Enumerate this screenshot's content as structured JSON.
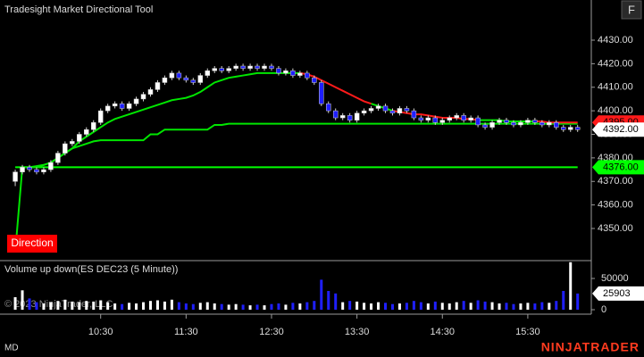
{
  "chart_data": {
    "type": "candlestick",
    "title": "Tradesight Market Directional Tool",
    "button": "F",
    "indicator_label": "Direction",
    "volume_title": "Volume up down(ES DEC23 (5 Minute))",
    "watermark": "© 2023 NinjaTrader, LLC",
    "footer_left": "MD",
    "brand": "NINJATRADER",
    "up_color": "#ffffff",
    "down_color": "#1f1fff",
    "x": [
      570,
      575,
      580,
      585,
      590,
      595,
      600,
      605,
      610,
      615,
      620,
      625,
      630,
      635,
      640,
      645,
      650,
      655,
      660,
      665,
      670,
      675,
      680,
      685,
      690,
      695,
      700,
      705,
      710,
      715,
      720,
      725,
      730,
      735,
      740,
      745,
      750,
      755,
      760,
      765,
      770,
      775,
      780,
      785,
      790,
      795,
      800,
      805,
      810,
      815,
      820,
      825,
      830,
      835,
      840,
      845,
      850,
      855,
      860,
      865,
      870,
      875,
      880,
      885,
      890,
      895,
      900,
      905,
      910,
      915,
      920,
      925,
      930,
      935,
      940,
      945,
      950,
      955,
      960,
      965
    ],
    "ohlc": [
      [
        4370,
        4375,
        4368,
        4374
      ],
      [
        4374,
        4377,
        4373,
        4376
      ],
      [
        4376,
        4377,
        4374,
        4375
      ],
      [
        4375,
        4376,
        4373,
        4374
      ],
      [
        4374,
        4376,
        4373,
        4375
      ],
      [
        4375,
        4379,
        4374,
        4378
      ],
      [
        4378,
        4383,
        4377,
        4382
      ],
      [
        4382,
        4387,
        4381,
        4386
      ],
      [
        4386,
        4388,
        4385,
        4387
      ],
      [
        4387,
        4391,
        4386,
        4390
      ],
      [
        4390,
        4393,
        4389,
        4392
      ],
      [
        4392,
        4396,
        4391,
        4395
      ],
      [
        4395,
        4401,
        4394,
        4400
      ],
      [
        4400,
        4403,
        4399,
        4402
      ],
      [
        4402,
        4404,
        4401,
        4403
      ],
      [
        4403,
        4404,
        4400,
        4401
      ],
      [
        4401,
        4404,
        4400,
        4403
      ],
      [
        4403,
        4406,
        4402,
        4405
      ],
      [
        4405,
        4408,
        4404,
        4407
      ],
      [
        4407,
        4410,
        4406,
        4409
      ],
      [
        4409,
        4413,
        4408,
        4412
      ],
      [
        4412,
        4415,
        4411,
        4414
      ],
      [
        4414,
        4417,
        4413,
        4416
      ],
      [
        4416,
        4417,
        4413,
        4414
      ],
      [
        4414,
        4415,
        4412,
        4413
      ],
      [
        4413,
        4414,
        4411,
        4412
      ],
      [
        4412,
        4416,
        4411,
        4415
      ],
      [
        4415,
        4418,
        4414,
        4417
      ],
      [
        4417,
        4419,
        4416,
        4418
      ],
      [
        4418,
        4419,
        4416,
        4417
      ],
      [
        4417,
        4419,
        4416,
        4418
      ],
      [
        4418,
        4420,
        4417,
        4419
      ],
      [
        4419,
        4420,
        4417,
        4418
      ],
      [
        4418,
        4420,
        4417,
        4419
      ],
      [
        4419,
        4420,
        4417,
        4418
      ],
      [
        4418,
        4420,
        4417,
        4419
      ],
      [
        4419,
        4420,
        4417,
        4418
      ],
      [
        4418,
        4419,
        4415,
        4416
      ],
      [
        4416,
        4418,
        4415,
        4417
      ],
      [
        4417,
        4418,
        4414,
        4415
      ],
      [
        4415,
        4417,
        4414,
        4416
      ],
      [
        4416,
        4417,
        4413,
        4414
      ],
      [
        4414,
        4415,
        4411,
        4412
      ],
      [
        4412,
        4413,
        4402,
        4403
      ],
      [
        4403,
        4404,
        4399,
        4400
      ],
      [
        4400,
        4401,
        4396,
        4397
      ],
      [
        4397,
        4399,
        4396,
        4398
      ],
      [
        4398,
        4399,
        4395,
        4396
      ],
      [
        4396,
        4400,
        4395,
        4399
      ],
      [
        4399,
        4401,
        4398,
        4400
      ],
      [
        4400,
        4402,
        4399,
        4401
      ],
      [
        4401,
        4403,
        4400,
        4402
      ],
      [
        4402,
        4403,
        4399,
        4400
      ],
      [
        4400,
        4401,
        4398,
        4399
      ],
      [
        4399,
        4402,
        4398,
        4401
      ],
      [
        4401,
        4402,
        4399,
        4400
      ],
      [
        4400,
        4401,
        4396,
        4397
      ],
      [
        4397,
        4398,
        4395,
        4396
      ],
      [
        4396,
        4398,
        4395,
        4397
      ],
      [
        4397,
        4398,
        4394,
        4395
      ],
      [
        4395,
        4397,
        4394,
        4396
      ],
      [
        4396,
        4398,
        4395,
        4397
      ],
      [
        4397,
        4399,
        4396,
        4398
      ],
      [
        4398,
        4399,
        4395,
        4396
      ],
      [
        4396,
        4398,
        4395,
        4397
      ],
      [
        4397,
        4398,
        4393,
        4394
      ],
      [
        4394,
        4395,
        4392,
        4393
      ],
      [
        4393,
        4396,
        4392,
        4395
      ],
      [
        4395,
        4397,
        4394,
        4396
      ],
      [
        4396,
        4397,
        4394,
        4395
      ],
      [
        4395,
        4396,
        4393,
        4394
      ],
      [
        4394,
        4396,
        4393,
        4395
      ],
      [
        4395,
        4397,
        4394,
        4396
      ],
      [
        4396,
        4397,
        4394,
        4395
      ],
      [
        4395,
        4396,
        4393,
        4394
      ],
      [
        4394,
        4396,
        4393,
        4395
      ],
      [
        4395,
        4396,
        4392,
        4393
      ],
      [
        4393,
        4394,
        4391,
        4392
      ],
      [
        4392,
        4394,
        4391,
        4393
      ],
      [
        4393,
        4394,
        4391,
        4392
      ]
    ],
    "volume": [
      20000,
      31000,
      18000,
      12000,
      10000,
      12000,
      14000,
      16000,
      13000,
      12000,
      14000,
      13000,
      15000,
      12000,
      10000,
      9000,
      11000,
      10000,
      12000,
      14000,
      15000,
      13000,
      16000,
      12000,
      10000,
      9000,
      11000,
      12000,
      10000,
      9000,
      8000,
      9000,
      8000,
      7000,
      8000,
      7000,
      9000,
      10000,
      8000,
      11000,
      10000,
      12000,
      14000,
      48000,
      30000,
      26000,
      12000,
      14000,
      13000,
      11000,
      10000,
      12000,
      11000,
      9000,
      10000,
      11000,
      14000,
      12000,
      10000,
      13000,
      11000,
      10000,
      12000,
      14000,
      11000,
      15000,
      13000,
      12000,
      10000,
      11000,
      9000,
      10000,
      11000,
      10000,
      12000,
      11000,
      14000,
      30000,
      76000,
      25903
    ],
    "series": [
      {
        "color": "#00e600",
        "values": [
          4340,
          4376,
          4376,
          4376,
          4377,
          4378,
          4380,
          4382,
          4384,
          4387,
          4389,
          4391,
          4393,
          4395,
          4396.5,
          4397.5,
          4398.5,
          4399.5,
          4400.5,
          4401.5,
          4402.5,
          4403.5,
          4404.5,
          4405,
          4405.5,
          4406.5,
          4408,
          4410,
          4412,
          4413,
          4414,
          4414.5,
          4415,
          4415.5,
          4416,
          4416,
          4416,
          4416,
          4416,
          4416,
          4416,
          null,
          null,
          null,
          null,
          null,
          null,
          null,
          null,
          null,
          4403,
          4402,
          4401,
          4400,
          null,
          null,
          null,
          null,
          null,
          null,
          null,
          null,
          null,
          null,
          null,
          4396,
          4396,
          4396,
          4396,
          4395.5,
          4395.5,
          4395.5,
          4395.5,
          4395.5,
          null,
          null,
          null,
          null,
          null,
          null
        ]
      },
      {
        "color": "#ff1a1a",
        "values": [
          null,
          null,
          null,
          null,
          null,
          null,
          null,
          null,
          null,
          null,
          null,
          null,
          null,
          null,
          null,
          null,
          null,
          null,
          null,
          null,
          null,
          null,
          null,
          null,
          null,
          null,
          null,
          null,
          null,
          null,
          null,
          null,
          null,
          null,
          null,
          null,
          null,
          null,
          null,
          null,
          4416,
          4415.5,
          4414.5,
          4413,
          4411.5,
          4410,
          4408.5,
          4407,
          4405.5,
          4404,
          4403,
          null,
          null,
          4400,
          4399.5,
          4399,
          4398.5,
          4398.5,
          4398,
          4397.5,
          4397,
          4397,
          4397,
          4396.5,
          4396.5,
          4396,
          null,
          null,
          null,
          null,
          null,
          null,
          null,
          4395.5,
          4395.5,
          4395,
          4395,
          4395,
          4395,
          4395
        ]
      }
    ],
    "step_line": {
      "color": "#00e600",
      "values": [
        null,
        4376,
        4376,
        4376.5,
        4377,
        4378,
        4380,
        4382,
        4384,
        4385,
        4386,
        4387,
        4387.5,
        4387.5,
        4387.5,
        4387.5,
        4387.5,
        4387.5,
        4387.5,
        4390,
        4390,
        4392,
        4392,
        4392,
        4392,
        4392,
        4392,
        4392,
        4394,
        4394,
        4394.5,
        4394.5,
        4394.5,
        4394.5,
        4394.5,
        4394.5,
        4394.5,
        4394.5,
        4394.5,
        4394.5,
        4394.5,
        4394.5,
        4394.5,
        4394.5,
        4394.5,
        4394.5,
        4394.5,
        4394.5,
        4394.5,
        4394.5,
        4394.5,
        4394.5,
        4394.5,
        4394.5,
        4394.5,
        4394.5,
        4394.5,
        4394.5,
        4394.5,
        4394.5,
        4394.5,
        4394.5,
        4394.5,
        4394.5,
        4394.5,
        4394.5,
        4394.5,
        4394.5,
        4394.5,
        4394.5,
        4394.5,
        4394.5,
        4394.5,
        4394.5,
        4394.5,
        4394.5,
        4394.5,
        4394.5,
        4394.5,
        4394.5
      ]
    },
    "support": {
      "value": 4376,
      "label": "4376.00",
      "color": "#00ff00"
    },
    "markers": [
      {
        "value": 4395,
        "label": "4395.00",
        "color": "#ff1a1a"
      },
      {
        "value": 4392,
        "label": "4392.00",
        "color": "#ffffff"
      }
    ],
    "xlim": [
      559.3,
      974.6
    ],
    "xticks": [
      {
        "value": 630,
        "label": "10:30"
      },
      {
        "value": 690,
        "label": "11:30"
      },
      {
        "value": 750,
        "label": "12:30"
      },
      {
        "value": 810,
        "label": "13:30"
      },
      {
        "value": 870,
        "label": "14:30"
      },
      {
        "value": 930,
        "label": "15:30"
      }
    ],
    "ylim": [
      4336.35,
      4447.06
    ],
    "yticks": [
      {
        "value": 4350,
        "label": "4350.00"
      },
      {
        "value": 4360,
        "label": "4360.00"
      },
      {
        "value": 4370,
        "label": "4370.00"
      },
      {
        "value": 4380,
        "label": "4380.00"
      },
      {
        "value": 4390,
        "label": "4390.00"
      },
      {
        "value": 4400,
        "label": "4400.00"
      },
      {
        "value": 4410,
        "label": "4410.00"
      },
      {
        "value": 4420,
        "label": "4420.00"
      },
      {
        "value": 4430,
        "label": "4430.00"
      }
    ],
    "volume_ylim": [
      -7143,
      78571
    ],
    "volume_yticks": [
      0,
      50000
    ]
  }
}
